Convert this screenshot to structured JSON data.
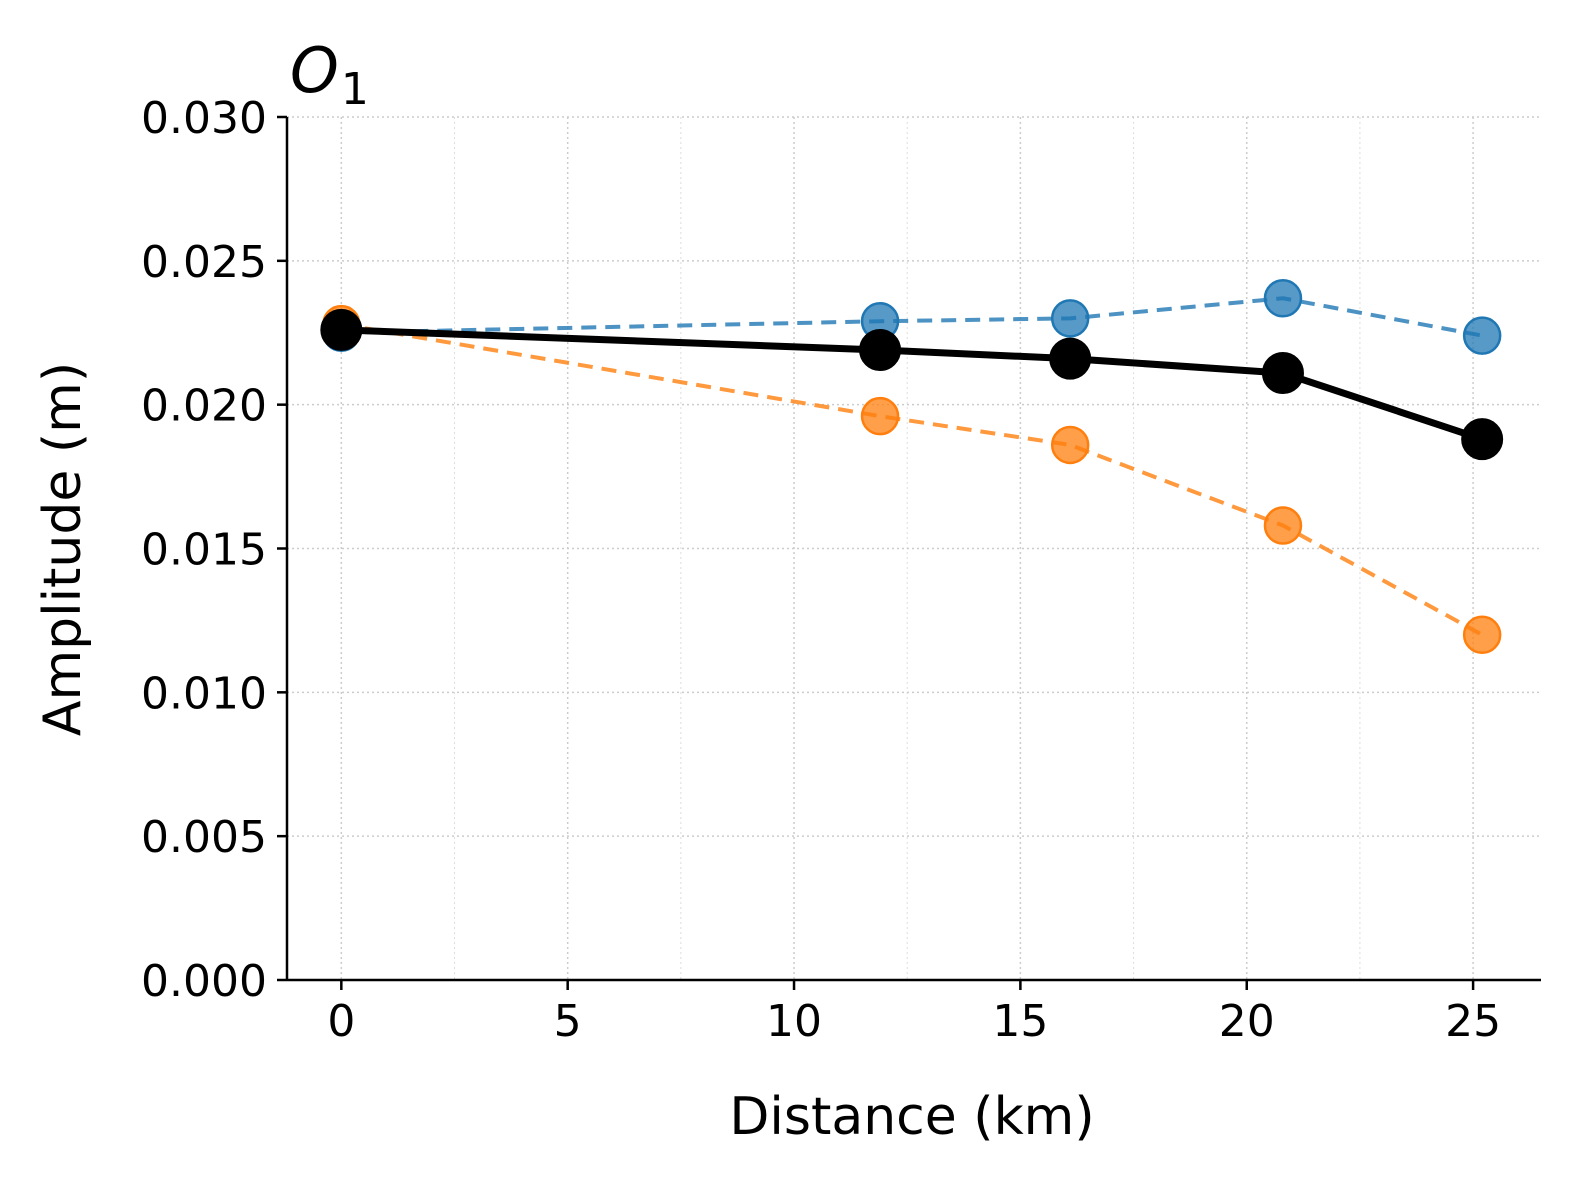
{
  "chart_data": {
    "type": "line",
    "title_main": "O",
    "title_sub": "1",
    "xlabel": "Distance (km)",
    "ylabel": "Amplitude (m)",
    "xlim": [
      -1.2,
      26.5
    ],
    "ylim": [
      0.0,
      0.03
    ],
    "xticks": [
      0,
      5,
      10,
      15,
      20,
      25
    ],
    "yticks": [
      0.0,
      0.005,
      0.01,
      0.015,
      0.02,
      0.025,
      0.03
    ],
    "ytick_labels": [
      "0.000",
      "0.005",
      "0.010",
      "0.015",
      "0.020",
      "0.025",
      "0.030"
    ],
    "grid": true,
    "x": [
      0,
      11.9,
      16.1,
      20.8,
      25.2
    ],
    "series": [
      {
        "name": "blue-dashed",
        "color": "#1f77b4",
        "style": "dashed",
        "values": [
          0.0225,
          0.0229,
          0.023,
          0.0237,
          0.0224
        ]
      },
      {
        "name": "orange-dashed",
        "color": "#ff7f0e",
        "style": "dashed",
        "values": [
          0.0228,
          0.0196,
          0.0186,
          0.0158,
          0.012
        ]
      },
      {
        "name": "black-solid",
        "color": "#000000",
        "style": "solid",
        "values": [
          0.0226,
          0.0219,
          0.0216,
          0.0211,
          0.0188
        ]
      }
    ]
  }
}
